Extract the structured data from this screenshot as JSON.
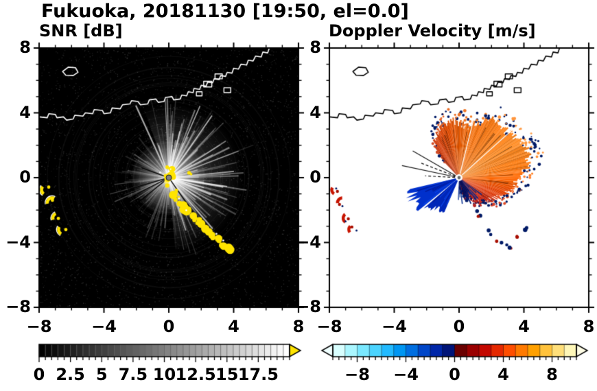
{
  "header": {
    "title": "Fukuoka, 20181130 [19:50, el=0.0]"
  },
  "geo": {
    "coastline": [
      [
        -8,
        3.75
      ],
      [
        -7.5,
        3.7
      ],
      [
        -7.4,
        3.95
      ],
      [
        -7,
        3.9
      ],
      [
        -6.9,
        3.7
      ],
      [
        -6.5,
        3.75
      ],
      [
        -6.3,
        3.55
      ],
      [
        -5.9,
        3.62
      ],
      [
        -5.8,
        3.85
      ],
      [
        -5.3,
        3.8
      ],
      [
        -5.15,
        4
      ],
      [
        -4.7,
        3.95
      ],
      [
        -4.6,
        4.2
      ],
      [
        -4.1,
        4.15
      ],
      [
        -4,
        3.95
      ],
      [
        -3.6,
        4
      ],
      [
        -3.5,
        4.3
      ],
      [
        -3,
        4.25
      ],
      [
        -2.85,
        4.5
      ],
      [
        -2.4,
        4.55
      ],
      [
        -2.3,
        4.75
      ],
      [
        -1.9,
        4.7
      ],
      [
        -1.75,
        4.5
      ],
      [
        -1.3,
        4.55
      ],
      [
        -1.2,
        4.8
      ],
      [
        -0.8,
        4.85
      ],
      [
        -0.65,
        4.65
      ],
      [
        -0.3,
        4.7
      ],
      [
        -0.2,
        4.95
      ],
      [
        0.2,
        5
      ],
      [
        0.3,
        4.8
      ],
      [
        0.7,
        4.85
      ],
      [
        0.8,
        5.1
      ],
      [
        1.1,
        5.05
      ],
      [
        1.2,
        5.3
      ],
      [
        1.5,
        5.25
      ],
      [
        1.55,
        5.5
      ],
      [
        1.9,
        5.45
      ],
      [
        2,
        5.7
      ],
      [
        2.3,
        5.65
      ],
      [
        2.4,
        5.9
      ],
      [
        2.7,
        5.85
      ],
      [
        2.8,
        6.1
      ],
      [
        3.1,
        6.05
      ],
      [
        3.2,
        6.3
      ],
      [
        3.5,
        6.25
      ],
      [
        3.6,
        6.5
      ],
      [
        3.9,
        6.45
      ],
      [
        4,
        6.75
      ],
      [
        4.3,
        6.7
      ],
      [
        4.45,
        7
      ],
      [
        4.8,
        6.95
      ],
      [
        4.9,
        7.25
      ],
      [
        5.2,
        7.2
      ],
      [
        5.35,
        7.5
      ],
      [
        5.7,
        7.45
      ],
      [
        5.8,
        7.75
      ],
      [
        6.1,
        7.7
      ],
      [
        6.2,
        8
      ]
    ],
    "island": [
      [
        -6.55,
        6.55
      ],
      [
        -6.2,
        6.82
      ],
      [
        -5.75,
        6.78
      ],
      [
        -5.6,
        6.5
      ],
      [
        -5.9,
        6.3
      ],
      [
        -6.35,
        6.32
      ]
    ],
    "harbors": [
      [
        2.15,
        5.95,
        0.5,
        0.35
      ],
      [
        2.85,
        6.4,
        0.45,
        0.3
      ],
      [
        3.4,
        5.55,
        0.42,
        0.3
      ],
      [
        1.7,
        5.3,
        0.35,
        0.25
      ]
    ]
  },
  "chart_data": [
    {
      "type": "heatmap",
      "panel": "snr",
      "title": "SNR [dB]",
      "xlim": [
        -8,
        8
      ],
      "ylim": [
        -8,
        8
      ],
      "x_ticks": [
        "−8",
        "−4",
        "0",
        "4",
        "8"
      ],
      "x_tick_values": [
        -8,
        -4,
        0,
        4,
        8
      ],
      "y_ticks": [
        "8",
        "4",
        "0",
        "−4",
        "−8"
      ],
      "y_tick_values": [
        8,
        4,
        0,
        -4,
        -8
      ],
      "background": "#000000",
      "coast_color": "#ffffff",
      "clutter_color": "#ffe400",
      "radar_center": [
        0,
        0
      ],
      "features": {
        "beams": "white radial interference spokes from radar at origin, brightest toward NE-SE",
        "shadow_lines": [
          [
            196,
            2.6
          ],
          [
            207,
            2.2
          ],
          [
            219,
            3.0
          ],
          [
            305,
            2.8
          ],
          [
            160,
            1.8
          ]
        ],
        "clutter_arc": [
          [
            0.35,
            -0.95
          ],
          [
            0.55,
            -1.3
          ],
          [
            0.8,
            -1.6
          ],
          [
            1.05,
            -1.95
          ],
          [
            1.15,
            -2.1
          ],
          [
            1.5,
            -2.5
          ],
          [
            1.8,
            -2.75
          ],
          [
            2.1,
            -3.0
          ],
          [
            2.45,
            -3.3
          ],
          [
            2.8,
            -3.65
          ],
          [
            3.1,
            -3.9
          ],
          [
            3.4,
            -4.1
          ],
          [
            3.7,
            -4.5
          ]
        ],
        "west_patches": [
          [
            -7.55,
            -0.75
          ],
          [
            -7.2,
            -1.55
          ],
          [
            -6.85,
            -2.5
          ],
          [
            -6.5,
            -3.2
          ]
        ],
        "extra_spots": [
          [
            1.25,
            0.3
          ],
          [
            -0.1,
            0.65
          ]
        ]
      },
      "colorbar": {
        "range": [
          0,
          20
        ],
        "tick_labels": [
          "0",
          "2.5",
          "5",
          "7.5",
          "10",
          "12.5",
          "15",
          "17.5"
        ],
        "tick_values": [
          0,
          2.5,
          5,
          7.5,
          10,
          12.5,
          15,
          17.5
        ],
        "minor_step": 0.5,
        "ramp": [
          "#000000",
          "#ffffff"
        ],
        "over_arrow_color": "#ffe400"
      }
    },
    {
      "type": "heatmap",
      "panel": "doppler",
      "title": "Doppler Velocity [m/s]",
      "xlim": [
        -8,
        8
      ],
      "ylim": [
        -8,
        8
      ],
      "x_ticks": [
        "−8",
        "−4",
        "0",
        "4",
        "8"
      ],
      "x_tick_values": [
        -8,
        -4,
        0,
        4,
        8
      ],
      "y_ticks": [
        "8",
        "4",
        "0",
        "−4",
        "−8"
      ],
      "y_tick_values": [
        8,
        4,
        0,
        -4,
        -8
      ],
      "background": "#ffffff",
      "coast_color": "#000000",
      "radar_center": [
        0,
        0
      ],
      "features": {
        "away_fan": {
          "az_deg": [
            -85,
            133
          ],
          "radius_profile": [
            [
              -85,
              0.7
            ],
            [
              -65,
              1.3
            ],
            [
              -45,
              2.0
            ],
            [
              -30,
              2.6
            ],
            [
              -15,
              3.2
            ],
            [
              0,
              3.8
            ],
            [
              10,
              4.3
            ],
            [
              20,
              4.6
            ],
            [
              30,
              4.4
            ],
            [
              40,
              4.2
            ],
            [
              50,
              4.0
            ],
            [
              60,
              4.2
            ],
            [
              70,
              3.6
            ],
            [
              80,
              3.2
            ],
            [
              90,
              3.4
            ],
            [
              100,
              3.6
            ],
            [
              110,
              3.3
            ],
            [
              120,
              3.0
            ],
            [
              128,
              2.2
            ],
            [
              133,
              1.2
            ]
          ],
          "color_stops": [
            [
              -85,
              "#7a0000"
            ],
            [
              -60,
              "#a80000"
            ],
            [
              -40,
              "#cc1800"
            ],
            [
              -20,
              "#e84000"
            ],
            [
              -5,
              "#ff6200"
            ],
            [
              10,
              "#ff7d12"
            ],
            [
              30,
              "#ff8c22"
            ],
            [
              55,
              "#ff7d15"
            ],
            [
              75,
              "#f26700"
            ],
            [
              95,
              "#e85500"
            ],
            [
              115,
              "#d83c00"
            ],
            [
              133,
              "#c42800"
            ]
          ],
          "gap_az": [
            42,
            76
          ]
        },
        "near_sector": {
          "az_deg": [
            -93,
            -36
          ],
          "radius": 1.8,
          "color": "#001a70"
        },
        "toward_wedges": [
          {
            "az_deg": [
              193,
              220
            ],
            "radius": 3.2,
            "color": "#0030cc"
          },
          {
            "az_deg": [
              221,
              247
            ],
            "radius": 2.6,
            "color": "#0026b8"
          }
        ],
        "shadow_lines": [
          [
            150,
            3.3
          ],
          [
            159,
            2.6
          ],
          [
            168,
            3.6
          ],
          [
            177,
            2.1
          ]
        ],
        "west_patches": [
          [
            -7.55,
            -0.75
          ],
          [
            -7.2,
            -1.55
          ],
          [
            -6.85,
            -2.5
          ],
          [
            -6.5,
            -3.2
          ]
        ],
        "south_spots": [
          [
            1.3,
            -2.2
          ],
          [
            1.95,
            -3.3
          ],
          [
            2.5,
            -3.85
          ],
          [
            3.05,
            -4.35
          ],
          [
            3.6,
            -3.7
          ],
          [
            4.15,
            -3.15
          ]
        ]
      },
      "colorbar": {
        "range": [
          -10,
          10
        ],
        "tick_labels": [
          "−8",
          "−4",
          "0",
          "4",
          "8"
        ],
        "tick_values": [
          -8,
          -4,
          0,
          4,
          8
        ],
        "minor_step": 0.5,
        "palette": [
          "#d8ffff",
          "#aaf6ff",
          "#7ae8ff",
          "#4cd4ff",
          "#22baff",
          "#0096f2",
          "#006ee0",
          "#0046c8",
          "#0026a8",
          "#001478",
          "#6a0000",
          "#9a0000",
          "#c40800",
          "#e52800",
          "#ff4e00",
          "#ff7a00",
          "#ffa000",
          "#ffc23c",
          "#ffdf7a",
          "#fff7b8"
        ],
        "under_arrow_color": "#f0ffff",
        "over_arrow_color": "#fffde6"
      }
    }
  ]
}
